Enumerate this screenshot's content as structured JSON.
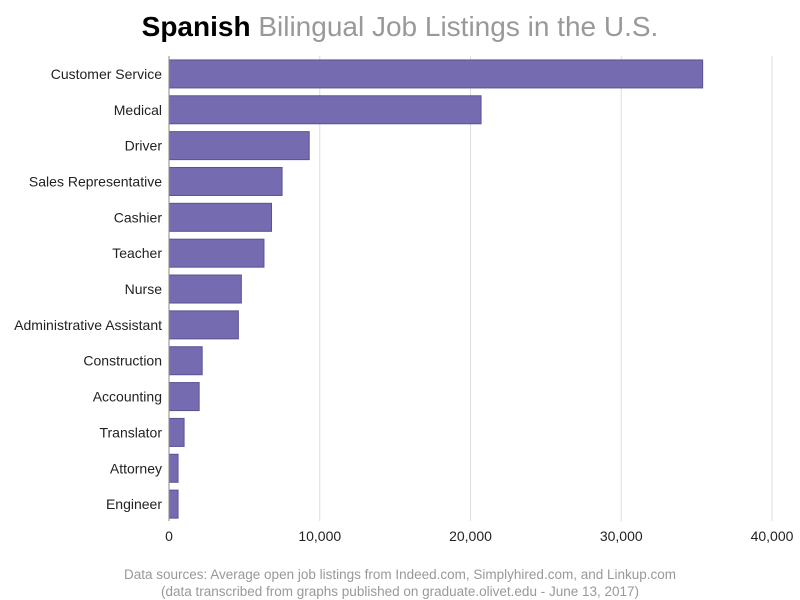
{
  "title": {
    "bold": "Spanish",
    "rest": "Bilingual Job Listings in the U.S."
  },
  "source": {
    "line1": "Data sources: Average open job listings from Indeed.com, Simplyhired.com, and Linkup.com",
    "line2": "(data transcribed from graphs published on graduate.olivet.edu - June 13, 2017)"
  },
  "colors": {
    "bar": "#756bb1",
    "bar_outline": "#5b5292",
    "grid": "#dddddd"
  },
  "chart_data": {
    "type": "bar",
    "orientation": "horizontal",
    "categories": [
      "Customer Service",
      "Medical",
      "Driver",
      "Sales Representative",
      "Cashier",
      "Teacher",
      "Nurse",
      "Administrative Assistant",
      "Construction",
      "Accounting",
      "Translator",
      "Attorney",
      "Engineer"
    ],
    "values": [
      35400,
      20700,
      9300,
      7500,
      6800,
      6300,
      4800,
      4600,
      2200,
      2000,
      1000,
      600,
      600
    ],
    "xlim": [
      0,
      40000
    ],
    "xticks": [
      0,
      10000,
      20000,
      30000,
      40000
    ],
    "xtick_labels": [
      "0",
      "10,000",
      "20,000",
      "30,000",
      "40,000"
    ],
    "grid": "vertical"
  }
}
